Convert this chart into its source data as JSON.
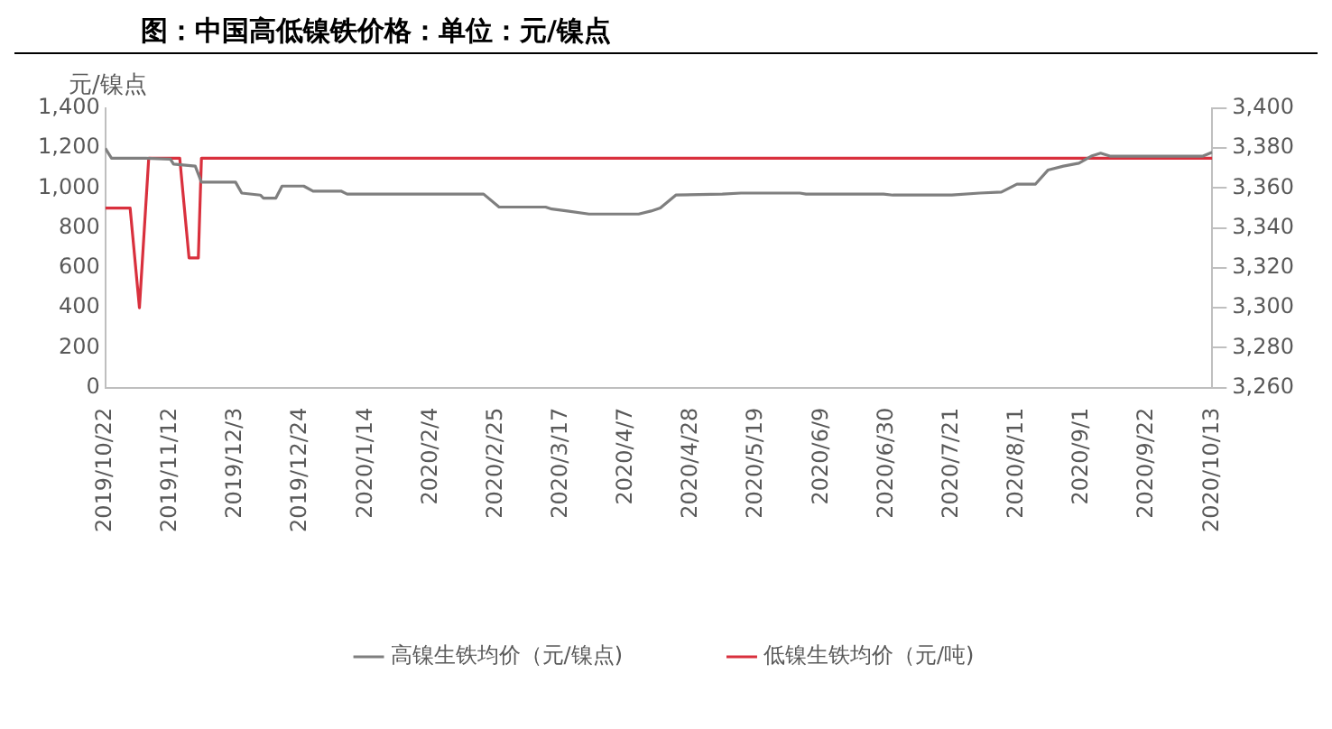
{
  "chart_data": {
    "type": "line",
    "title": "图：中国高低镍铁价格：单位：元/镍点",
    "ylabel": "元/镍点",
    "xlim": [
      "2019-10-22",
      "2020-10-13"
    ],
    "xticks": [
      {
        "value": "2019-10-22",
        "label": "2019/10/22"
      },
      {
        "value": "2019-11-12",
        "label": "2019/11/12"
      },
      {
        "value": "2019-12-03",
        "label": "2019/12/3"
      },
      {
        "value": "2019-12-24",
        "label": "2019/12/24"
      },
      {
        "value": "2020-01-14",
        "label": "2020/1/14"
      },
      {
        "value": "2020-02-04",
        "label": "2020/2/4"
      },
      {
        "value": "2020-02-25",
        "label": "2020/2/25"
      },
      {
        "value": "2020-03-17",
        "label": "2020/3/17"
      },
      {
        "value": "2020-04-07",
        "label": "2020/4/7"
      },
      {
        "value": "2020-04-28",
        "label": "2020/4/28"
      },
      {
        "value": "2020-05-19",
        "label": "2020/5/19"
      },
      {
        "value": "2020-06-09",
        "label": "2020/6/9"
      },
      {
        "value": "2020-06-30",
        "label": "2020/6/30"
      },
      {
        "value": "2020-07-21",
        "label": "2020/7/21"
      },
      {
        "value": "2020-08-11",
        "label": "2020/8/11"
      },
      {
        "value": "2020-09-01",
        "label": "2020/9/1"
      },
      {
        "value": "2020-09-22",
        "label": "2020/9/22"
      },
      {
        "value": "2020-10-13",
        "label": "2020/10/13"
      }
    ],
    "ylim": [
      0,
      1400
    ],
    "yticks": [
      {
        "value": 0,
        "label": "0"
      },
      {
        "value": 200,
        "label": "200"
      },
      {
        "value": 400,
        "label": "400"
      },
      {
        "value": 600,
        "label": "600"
      },
      {
        "value": 800,
        "label": "800"
      },
      {
        "value": 1000,
        "label": "1,000"
      },
      {
        "value": 1200,
        "label": "1,200"
      },
      {
        "value": 1400,
        "label": "1,400"
      }
    ],
    "y2lim": [
      3260,
      3400
    ],
    "y2ticks": [
      {
        "value": 3260,
        "label": "3,260"
      },
      {
        "value": 3280,
        "label": "3,280"
      },
      {
        "value": 3300,
        "label": "3,300"
      },
      {
        "value": 3320,
        "label": "3,320"
      },
      {
        "value": 3340,
        "label": "3,340"
      },
      {
        "value": 3360,
        "label": "3,360"
      },
      {
        "value": 3380,
        "label": "3,380"
      },
      {
        "value": 3400,
        "label": "3,400"
      }
    ],
    "grid": false,
    "legend": "bottom",
    "marker": "none",
    "line_style": "solid",
    "series": [
      {
        "name": "高镍生铁均价（元/镍点)",
        "color": "#7f7f7f",
        "x": [
          "2019-10-22",
          "2019-10-24",
          "2019-11-04",
          "2019-11-12",
          "2019-11-13",
          "2019-11-20",
          "2019-11-22",
          "2019-12-03",
          "2019-12-05",
          "2019-12-11",
          "2019-12-12",
          "2019-12-16",
          "2019-12-18",
          "2019-12-25",
          "2019-12-28",
          "2020-01-06",
          "2020-01-08",
          "2020-02-21",
          "2020-02-26",
          "2020-03-12",
          "2020-03-14",
          "2020-03-19",
          "2020-03-26",
          "2020-04-11",
          "2020-04-15",
          "2020-04-18",
          "2020-04-23",
          "2020-05-08",
          "2020-05-14",
          "2020-06-02",
          "2020-06-04",
          "2020-06-29",
          "2020-07-02",
          "2020-07-21",
          "2020-07-30",
          "2020-08-06",
          "2020-08-11",
          "2020-08-17",
          "2020-08-21",
          "2020-08-26",
          "2020-08-31",
          "2020-09-04",
          "2020-09-07",
          "2020-09-10",
          "2020-10-10",
          "2020-10-13"
        ],
        "values": [
          1200,
          1150,
          1150,
          1145,
          1120,
          1110,
          1030,
          1030,
          975,
          965,
          950,
          950,
          1010,
          1010,
          985,
          985,
          970,
          970,
          905,
          905,
          895,
          885,
          870,
          870,
          885,
          900,
          965,
          970,
          975,
          975,
          970,
          970,
          965,
          965,
          975,
          980,
          1020,
          1020,
          1090,
          1110,
          1125,
          1160,
          1175,
          1160,
          1160,
          1180
        ]
      },
      {
        "name": "低镍生铁均价（元/吨)",
        "color": "#d9303d",
        "axis": "y2",
        "x": [
          "2019-10-22",
          "2019-10-30",
          "2019-11-02",
          "2019-11-05",
          "2019-11-15",
          "2019-11-18",
          "2019-11-21",
          "2019-11-22",
          "2020-10-13"
        ],
        "values": [
          3350,
          3350,
          3300,
          3375,
          3375,
          3325,
          3325,
          3375,
          3375
        ]
      }
    ]
  }
}
